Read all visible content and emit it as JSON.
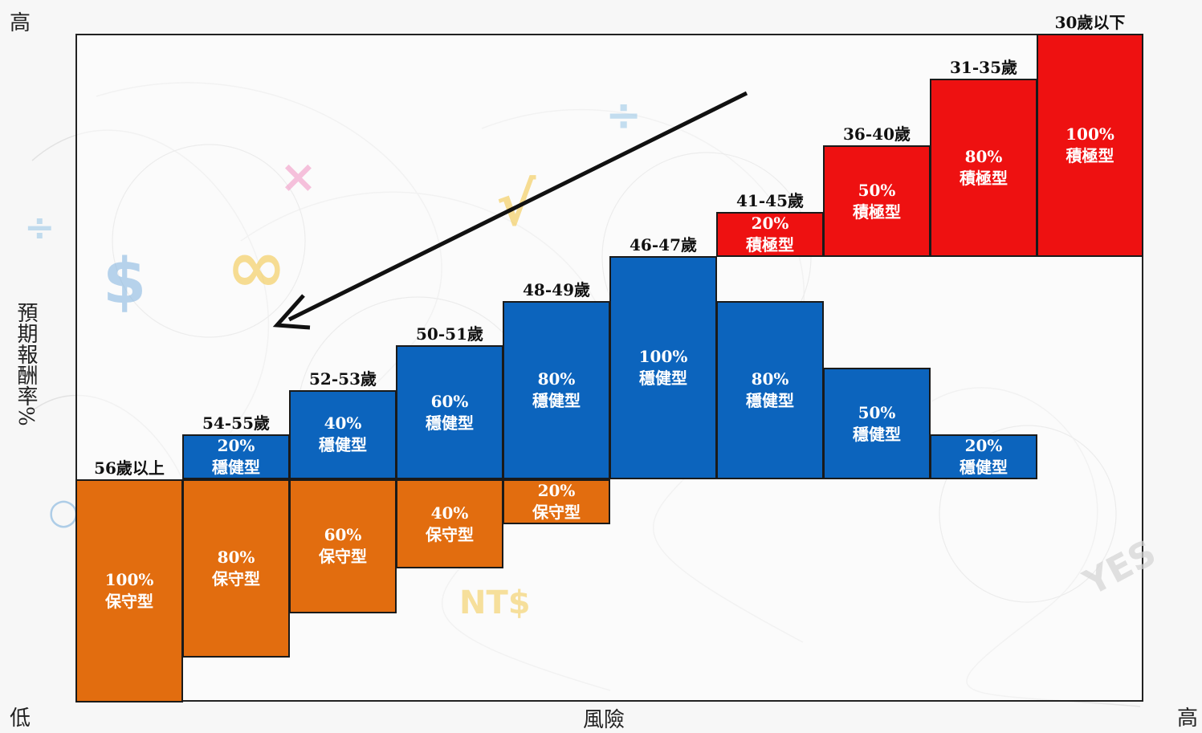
{
  "axis": {
    "y_title": "預期報酬率%",
    "y_high": "高",
    "y_low": "低",
    "x_title": "風險",
    "x_high": "高"
  },
  "colors": {
    "conservative": "#e26d0f",
    "balanced": "#0c64bd",
    "aggressive": "#ee1111"
  },
  "decorations": {
    "nt": "NT$",
    "dollar": "$",
    "yes": "YES"
  },
  "groups": [
    {
      "age": "56歲以上",
      "segments": [
        {
          "pct": "100%",
          "type": "保守型",
          "kind": "conservative"
        }
      ]
    },
    {
      "age": "54-55歲",
      "segments": [
        {
          "pct": "80%",
          "type": "保守型",
          "kind": "conservative"
        },
        {
          "pct": "20%",
          "type": "穩健型",
          "kind": "balanced"
        }
      ]
    },
    {
      "age": "52-53歲",
      "segments": [
        {
          "pct": "60%",
          "type": "保守型",
          "kind": "conservative"
        },
        {
          "pct": "40%",
          "type": "穩健型",
          "kind": "balanced"
        }
      ]
    },
    {
      "age": "50-51歲",
      "segments": [
        {
          "pct": "40%",
          "type": "保守型",
          "kind": "conservative"
        },
        {
          "pct": "60%",
          "type": "穩健型",
          "kind": "balanced"
        }
      ]
    },
    {
      "age": "48-49歲",
      "segments": [
        {
          "pct": "20%",
          "type": "保守型",
          "kind": "conservative"
        },
        {
          "pct": "80%",
          "type": "穩健型",
          "kind": "balanced"
        }
      ]
    },
    {
      "age": "46-47歲",
      "segments": [
        {
          "pct": "100%",
          "type": "穩健型",
          "kind": "balanced"
        }
      ]
    },
    {
      "age": "41-45歲",
      "segments": [
        {
          "pct": "80%",
          "type": "穩健型",
          "kind": "balanced"
        },
        {
          "pct": "20%",
          "type": "積極型",
          "kind": "aggressive"
        }
      ]
    },
    {
      "age": "36-40歲",
      "segments": [
        {
          "pct": "50%",
          "type": "穩健型",
          "kind": "balanced"
        },
        {
          "pct": "50%",
          "type": "積極型",
          "kind": "aggressive"
        }
      ]
    },
    {
      "age": "31-35歲",
      "segments": [
        {
          "pct": "20%",
          "type": "穩健型",
          "kind": "balanced"
        },
        {
          "pct": "80%",
          "type": "積極型",
          "kind": "aggressive"
        }
      ]
    },
    {
      "age": "30歲以下",
      "segments": [
        {
          "pct": "100%",
          "type": "積極型",
          "kind": "aggressive"
        }
      ]
    }
  ]
}
